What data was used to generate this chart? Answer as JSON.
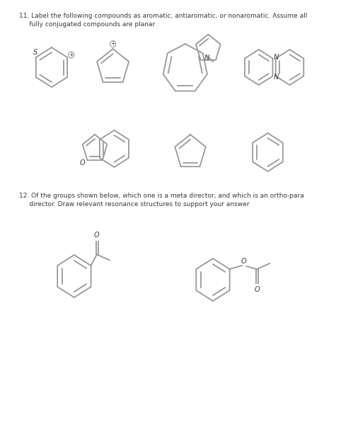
{
  "title1": "11. Label the following compounds as aromatic, antiaromatic, or nonaromatic. Assume all",
  "title1b": "     fully conjugated compounds are planar",
  "title2": "12. Of the groups shown below, which one is a meta director, and which is an ortho-para",
  "title2b": "     director. Draw relevant resonance structures to support your answer",
  "bg_color": "#ffffff",
  "text_color": "#3a3a3a",
  "line_color": "#999999",
  "line_width": 1.3
}
